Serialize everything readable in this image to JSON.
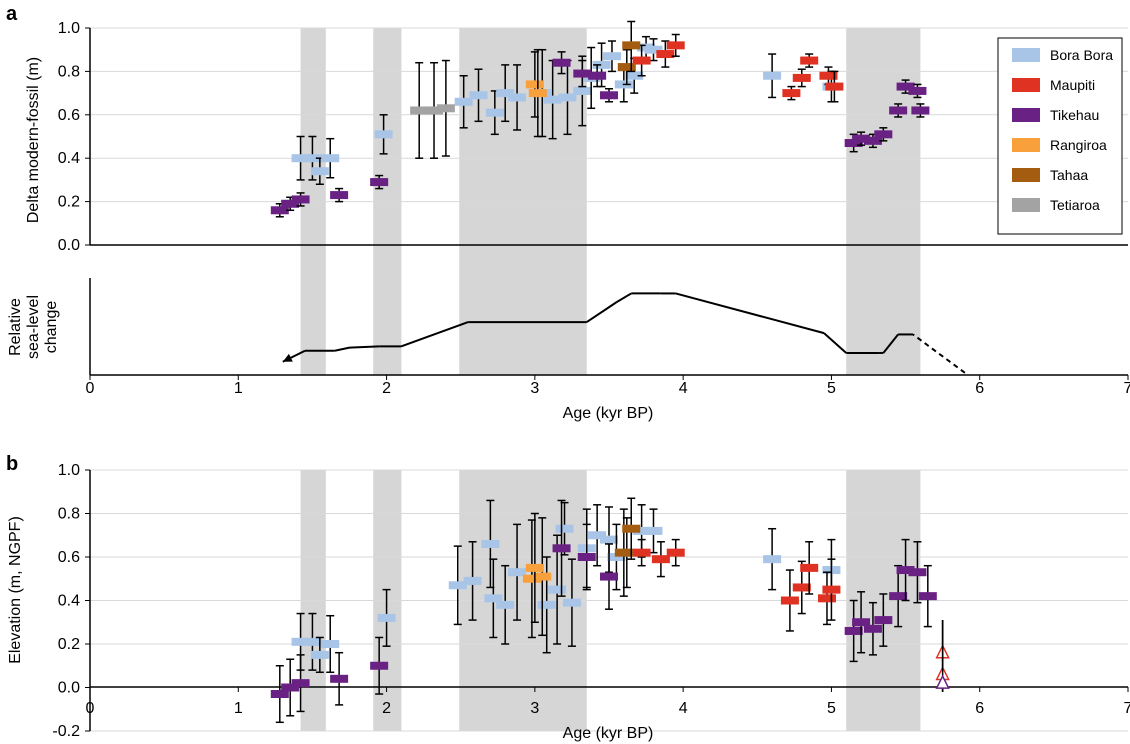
{
  "colors": {
    "Bora Bora": "#a8c4e6",
    "Maupiti": "#e03222",
    "Tikehau": "#6a2184",
    "Rangiroa": "#f8a03c",
    "Tahaa": "#a35c10",
    "Tetiaroa": "#a3a3a3",
    "shade": "#d6d6d6",
    "grid": "#d9d9d9",
    "axis": "#000000"
  },
  "chart_data": [
    {
      "id": "a",
      "type": "scatter",
      "panel_label": "a",
      "ylabel": "Delta modern-fossil (m)",
      "ylim": [
        0,
        1.0
      ],
      "yticks": [
        "0.0",
        "0.2",
        "0.4",
        "0.6",
        "0.8",
        "1.0"
      ],
      "xlim": [
        0,
        7
      ],
      "grid": true,
      "legend_position": "top-right",
      "series": [
        {
          "name": "Bora Bora",
          "points": [
            [
              1.5,
              0.4,
              0.1
            ],
            [
              1.42,
              0.4,
              0.1
            ],
            [
              1.55,
              0.34,
              0.06
            ],
            [
              1.62,
              0.4,
              0.09
            ],
            [
              1.98,
              0.51,
              0.09
            ],
            [
              2.52,
              0.66,
              0.12
            ],
            [
              2.62,
              0.69,
              0.12
            ],
            [
              2.73,
              0.61,
              0.1
            ],
            [
              2.8,
              0.7,
              0.13
            ],
            [
              2.88,
              0.68,
              0.15
            ],
            [
              3.05,
              0.7,
              0.2
            ],
            [
              3.12,
              0.67,
              0.18
            ],
            [
              3.22,
              0.68,
              0.17
            ],
            [
              3.32,
              0.71,
              0.16
            ],
            [
              3.38,
              0.77,
              0.14
            ],
            [
              3.45,
              0.83,
              0.1
            ],
            [
              3.52,
              0.87,
              0.07
            ],
            [
              3.6,
              0.74,
              0.08
            ],
            [
              3.67,
              0.78,
              0.08
            ],
            [
              3.75,
              0.91,
              0.05
            ],
            [
              3.8,
              0.9,
              0.05
            ],
            [
              4.6,
              0.78,
              0.1
            ],
            [
              5.0,
              0.73,
              0.07
            ]
          ]
        },
        {
          "name": "Maupiti",
          "points": [
            [
              3.72,
              0.85,
              0.07
            ],
            [
              3.88,
              0.88,
              0.06
            ],
            [
              3.95,
              0.92,
              0.05
            ],
            [
              4.73,
              0.7,
              0.03
            ],
            [
              4.8,
              0.77,
              0.04
            ],
            [
              4.85,
              0.85,
              0.03
            ],
            [
              4.98,
              0.78,
              0.04
            ],
            [
              5.02,
              0.73,
              0.07
            ]
          ]
        },
        {
          "name": "Tikehau",
          "points": [
            [
              1.28,
              0.16,
              0.03
            ],
            [
              1.35,
              0.19,
              0.03
            ],
            [
              1.42,
              0.21,
              0.03
            ],
            [
              1.68,
              0.23,
              0.03
            ],
            [
              1.95,
              0.29,
              0.03
            ],
            [
              3.18,
              0.84,
              0.05
            ],
            [
              3.32,
              0.79,
              0.06
            ],
            [
              3.42,
              0.78,
              0.05
            ],
            [
              3.5,
              0.69,
              0.03
            ],
            [
              5.15,
              0.47,
              0.04
            ],
            [
              5.2,
              0.49,
              0.03
            ],
            [
              5.28,
              0.48,
              0.03
            ],
            [
              5.35,
              0.51,
              0.03
            ],
            [
              5.45,
              0.62,
              0.03
            ],
            [
              5.5,
              0.73,
              0.03
            ],
            [
              5.58,
              0.71,
              0.03
            ],
            [
              5.6,
              0.62,
              0.03
            ]
          ]
        },
        {
          "name": "Rangiroa",
          "points": [
            [
              3.0,
              0.74,
              0.15
            ],
            [
              3.02,
              0.7,
              0.2
            ]
          ]
        },
        {
          "name": "Tahaa",
          "points": [
            [
              3.62,
              0.82,
              0.08
            ],
            [
              3.65,
              0.92,
              0.12
            ]
          ]
        },
        {
          "name": "Tetiaroa",
          "points": [
            [
              2.22,
              0.62,
              0.22
            ],
            [
              2.32,
              0.62,
              0.22
            ],
            [
              2.4,
              0.63,
              0.22
            ]
          ]
        }
      ],
      "shaded_x": [
        [
          1.42,
          1.59
        ],
        [
          1.91,
          2.1
        ],
        [
          2.49,
          3.35
        ],
        [
          5.1,
          5.6
        ]
      ],
      "sea_level": {
        "ylabel_lines": [
          "Relative",
          "sea-level",
          "change"
        ],
        "solid": [
          [
            5.9,
            0.05
          ],
          [
            5.55,
            0.92
          ],
          [
            5.45,
            0.92
          ],
          [
            5.35,
            0.5
          ],
          [
            5.32,
            0.5
          ],
          [
            5.1,
            0.5
          ],
          [
            4.95,
            0.95
          ],
          [
            3.95,
            1.85
          ],
          [
            3.85,
            1.85
          ],
          [
            3.65,
            1.85
          ],
          [
            3.55,
            1.65
          ],
          [
            3.35,
            1.2
          ],
          [
            2.55,
            1.2
          ],
          [
            2.1,
            0.65
          ],
          [
            1.95,
            0.65
          ],
          [
            1.75,
            0.62
          ],
          [
            1.65,
            0.55
          ],
          [
            1.45,
            0.55
          ],
          [
            1.3,
            0.3
          ]
        ]
      },
      "xlabel": "Age (kyr BP)",
      "xticks": [
        "0",
        "1",
        "2",
        "3",
        "4",
        "5",
        "6",
        "7"
      ]
    },
    {
      "id": "b",
      "type": "scatter",
      "panel_label": "b",
      "ylabel": "Elevation (m, NGPF)",
      "ylim": [
        -0.2,
        1.0
      ],
      "yticks": [
        "-0.2",
        "0.0",
        "0.2",
        "0.4",
        "0.6",
        "0.8",
        "1.0"
      ],
      "xlim": [
        0,
        7
      ],
      "xlabel": "Age (kyr BP)",
      "xticks": [
        "0",
        "1",
        "2",
        "3",
        "4",
        "5",
        "6",
        "7"
      ],
      "series": [
        {
          "name": "Bora Bora",
          "points": [
            [
              1.42,
              0.21,
              0.13
            ],
            [
              1.5,
              0.21,
              0.13
            ],
            [
              1.55,
              0.15,
              0.08
            ],
            [
              1.62,
              0.2,
              0.13
            ],
            [
              2.0,
              0.32,
              0.13
            ],
            [
              2.48,
              0.47,
              0.18
            ],
            [
              2.58,
              0.49,
              0.18
            ],
            [
              2.7,
              0.66,
              0.2
            ],
            [
              2.72,
              0.41,
              0.18
            ],
            [
              2.8,
              0.38,
              0.18
            ],
            [
              2.88,
              0.53,
              0.22
            ],
            [
              3.08,
              0.38,
              0.22
            ],
            [
              3.15,
              0.45,
              0.25
            ],
            [
              3.2,
              0.73,
              0.12
            ],
            [
              3.25,
              0.39,
              0.2
            ],
            [
              3.35,
              0.64,
              0.18
            ],
            [
              3.42,
              0.7,
              0.14
            ],
            [
              3.5,
              0.68,
              0.15
            ],
            [
              3.55,
              0.6,
              0.15
            ],
            [
              3.62,
              0.62,
              0.16
            ],
            [
              3.72,
              0.72,
              0.12
            ],
            [
              3.8,
              0.72,
              0.1
            ],
            [
              4.6,
              0.59,
              0.14
            ],
            [
              5.0,
              0.54,
              0.14
            ]
          ]
        },
        {
          "name": "Maupiti",
          "points": [
            [
              3.72,
              0.62,
              0.06
            ],
            [
              3.85,
              0.59,
              0.08
            ],
            [
              3.95,
              0.62,
              0.06
            ],
            [
              4.72,
              0.4,
              0.14
            ],
            [
              4.8,
              0.46,
              0.12
            ],
            [
              4.85,
              0.55,
              0.12
            ],
            [
              4.97,
              0.41,
              0.12
            ],
            [
              5.0,
              0.45,
              0.14
            ]
          ]
        },
        {
          "name": "Tikehau",
          "points": [
            [
              1.28,
              -0.03,
              0.13
            ],
            [
              1.35,
              0.0,
              0.13
            ],
            [
              1.42,
              0.02,
              0.13
            ],
            [
              1.68,
              0.04,
              0.12
            ],
            [
              1.95,
              0.1,
              0.13
            ],
            [
              3.18,
              0.64,
              0.22
            ],
            [
              3.35,
              0.6,
              0.15
            ],
            [
              3.5,
              0.51,
              0.15
            ],
            [
              5.15,
              0.26,
              0.14
            ],
            [
              5.2,
              0.3,
              0.14
            ],
            [
              5.28,
              0.27,
              0.12
            ],
            [
              5.35,
              0.31,
              0.12
            ],
            [
              5.45,
              0.42,
              0.14
            ],
            [
              5.5,
              0.54,
              0.14
            ],
            [
              5.58,
              0.53,
              0.14
            ],
            [
              5.65,
              0.42,
              0.14
            ]
          ]
        },
        {
          "name": "Rangiroa",
          "points": [
            [
              2.98,
              0.5,
              0.27
            ],
            [
              3.05,
              0.51,
              0.27
            ],
            [
              3.0,
              0.55,
              0.25
            ]
          ]
        },
        {
          "name": "Tahaa",
          "points": [
            [
              3.6,
              0.62,
              0.2
            ],
            [
              3.65,
              0.73,
              0.14
            ]
          ]
        },
        {
          "name": "Tetiaroa",
          "points": []
        }
      ],
      "triangles": [
        [
          5.75,
          0.16
        ],
        [
          5.75,
          0.06
        ],
        [
          5.75,
          0.02
        ]
      ],
      "shaded_x": [
        [
          1.42,
          1.59
        ],
        [
          1.91,
          2.1
        ],
        [
          2.49,
          3.35
        ],
        [
          5.1,
          5.6
        ]
      ]
    }
  ],
  "legend": [
    "Bora Bora",
    "Maupiti",
    "Tikehau",
    "Rangiroa",
    "Tahaa",
    "Tetiaroa"
  ]
}
